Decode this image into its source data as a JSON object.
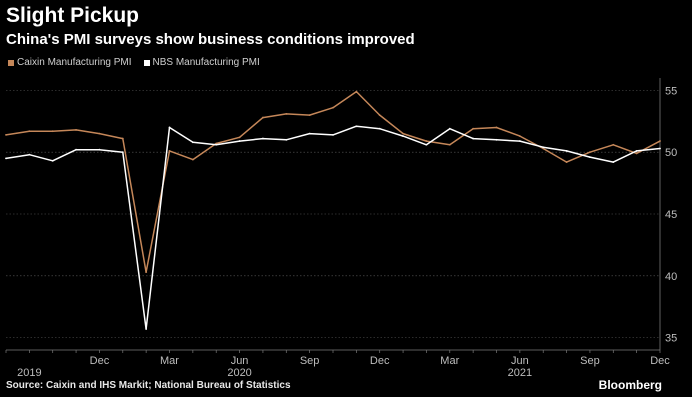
{
  "header": {
    "title": "Slight Pickup",
    "subtitle": "China's PMI surveys show business conditions improved"
  },
  "footer": {
    "source": "Source: Caixin and IHS Markit; National Bureau of Statistics",
    "brand": "Bloomberg"
  },
  "colors": {
    "caixin": "#c58759",
    "nbs": "#ffffff",
    "grid": "#5a5a5a"
  },
  "chart_data": {
    "type": "line",
    "title": "Slight Pickup",
    "subtitle": "China's PMI surveys show business conditions improved",
    "xlabel": "",
    "ylabel": "",
    "x": [
      "2019-08",
      "2019-09",
      "2019-10",
      "2019-11",
      "2019-12",
      "2020-01",
      "2020-02",
      "2020-03",
      "2020-04",
      "2020-05",
      "2020-06",
      "2020-07",
      "2020-08",
      "2020-09",
      "2020-10",
      "2020-11",
      "2020-12",
      "2021-01",
      "2021-02",
      "2021-03",
      "2021-04",
      "2021-05",
      "2021-06",
      "2021-07",
      "2021-08",
      "2021-09",
      "2021-10",
      "2021-11",
      "2021-12"
    ],
    "ylim": [
      34,
      56
    ],
    "yticks": [
      35,
      40,
      45,
      50,
      55
    ],
    "grid": true,
    "legend_position": "top-left",
    "x_tick_labels": [
      {
        "x": "2019-12",
        "label": "Dec"
      },
      {
        "x": "2020-03",
        "label": "Mar"
      },
      {
        "x": "2020-06",
        "label": "Jun"
      },
      {
        "x": "2020-09",
        "label": "Sep"
      },
      {
        "x": "2020-12",
        "label": "Dec"
      },
      {
        "x": "2021-03",
        "label": "Mar"
      },
      {
        "x": "2021-06",
        "label": "Jun"
      },
      {
        "x": "2021-09",
        "label": "Sep"
      },
      {
        "x": "2021-12",
        "label": "Dec"
      }
    ],
    "year_labels": [
      {
        "x": "2019-09",
        "label": "2019"
      },
      {
        "x": "2020-06",
        "label": "2020"
      },
      {
        "x": "2021-06",
        "label": "2021"
      }
    ],
    "series": [
      {
        "name": "Caixin Manufacturing PMI",
        "color": "#c58759",
        "values": [
          51.4,
          51.7,
          51.7,
          51.8,
          51.5,
          51.1,
          40.3,
          50.1,
          49.4,
          50.7,
          51.2,
          52.8,
          53.1,
          53.0,
          53.6,
          54.9,
          53.0,
          51.5,
          50.9,
          50.6,
          51.9,
          52.0,
          51.3,
          50.3,
          49.2,
          50.0,
          50.6,
          49.9,
          50.9
        ]
      },
      {
        "name": "NBS Manufacturing PMI",
        "color": "#ffffff",
        "values": [
          49.5,
          49.8,
          49.3,
          50.2,
          50.2,
          50.0,
          35.7,
          52.0,
          50.8,
          50.6,
          50.9,
          51.1,
          51.0,
          51.5,
          51.4,
          52.1,
          51.9,
          51.3,
          50.6,
          51.9,
          51.1,
          51.0,
          50.9,
          50.4,
          50.1,
          49.6,
          49.2,
          50.1,
          50.3
        ]
      }
    ]
  }
}
